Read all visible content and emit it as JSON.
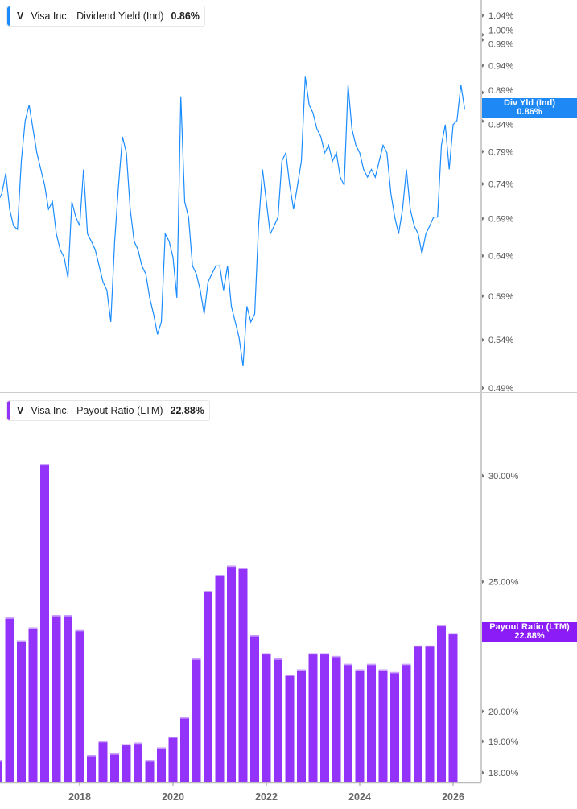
{
  "colors": {
    "yield_line": "#1a8cff",
    "payout_bar": "#9333fa",
    "yield_tag": "#1e88f5",
    "payout_tag": "#8b1cf7"
  },
  "legend_top": {
    "ticker": "V",
    "company": "Visa Inc.",
    "metric": "Dividend Yield (Ind)",
    "value": "0.86%"
  },
  "legend_bottom": {
    "ticker": "V",
    "company": "Visa Inc.",
    "metric": "Payout Ratio (LTM)",
    "value": "22.88%"
  },
  "tag_top": {
    "label": "Div Yld (Ind)",
    "value": "0.86%"
  },
  "tag_bottom": {
    "label": "Payout Ratio (LTM)",
    "value": "22.88%"
  },
  "chart_data": [
    {
      "type": "line",
      "series_name": "Dividend Yield (Ind)",
      "y_scale": "log",
      "ylim": [
        0.486,
        1.073
      ],
      "y_ticks": [
        "1.04%",
        "1.00%",
        "0.99%",
        "0.94%",
        "0.89%",
        "0.84%",
        "0.79%",
        "0.74%",
        "0.69%",
        "0.64%",
        "0.59%",
        "0.54%",
        "0.49%"
      ],
      "y_tick_values": [
        1.04,
        1.0,
        0.99,
        0.94,
        0.89,
        0.84,
        0.79,
        0.74,
        0.69,
        0.64,
        0.59,
        0.54,
        0.49
      ],
      "axis_side": "right",
      "grid": false,
      "x": [
        "2016-04",
        "2016-05",
        "2016-06",
        "2016-07",
        "2016-08",
        "2016-09",
        "2016-10",
        "2016-11",
        "2016-12",
        "2017-01",
        "2017-02",
        "2017-03",
        "2017-04",
        "2017-05",
        "2017-06",
        "2017-07",
        "2017-08",
        "2017-09",
        "2017-10",
        "2017-11",
        "2017-12",
        "2018-01",
        "2018-02",
        "2018-03",
        "2018-04",
        "2018-05",
        "2018-06",
        "2018-07",
        "2018-08",
        "2018-09",
        "2018-10",
        "2018-11",
        "2018-12",
        "2019-01",
        "2019-02",
        "2019-03",
        "2019-04",
        "2019-05",
        "2019-06",
        "2019-07",
        "2019-08",
        "2019-09",
        "2019-10",
        "2019-11",
        "2019-12",
        "2020-01",
        "2020-02",
        "2020-03",
        "2020-04",
        "2020-05",
        "2020-06",
        "2020-07",
        "2020-08",
        "2020-09",
        "2020-10",
        "2020-11",
        "2020-12",
        "2021-01",
        "2021-02",
        "2021-03",
        "2021-04",
        "2021-05",
        "2021-06",
        "2021-07",
        "2021-08",
        "2021-09",
        "2021-10",
        "2021-11",
        "2021-12",
        "2022-01",
        "2022-02",
        "2022-03",
        "2022-04",
        "2022-05",
        "2022-06",
        "2022-07",
        "2022-08",
        "2022-09",
        "2022-10",
        "2022-11",
        "2022-12",
        "2023-01",
        "2023-02",
        "2023-03",
        "2023-04",
        "2023-05",
        "2023-06",
        "2023-07",
        "2023-08",
        "2023-09",
        "2023-10",
        "2023-11",
        "2023-12",
        "2024-01",
        "2024-02",
        "2024-03",
        "2024-04",
        "2024-05",
        "2024-06",
        "2024-07",
        "2024-08",
        "2024-09",
        "2024-10",
        "2024-11",
        "2024-12",
        "2025-01",
        "2025-02",
        "2025-03",
        "2025-04",
        "2025-05",
        "2025-06",
        "2025-07",
        "2025-08",
        "2025-09",
        "2025-10",
        "2025-11",
        "2025-12",
        "2026-01",
        "2026-02",
        "2026-03",
        "2026-04"
      ],
      "values": [
        0.714,
        0.726,
        0.756,
        0.703,
        0.68,
        0.675,
        0.775,
        0.841,
        0.868,
        0.827,
        0.788,
        0.762,
        0.738,
        0.703,
        0.714,
        0.669,
        0.648,
        0.638,
        0.612,
        0.714,
        0.692,
        0.68,
        0.762,
        0.669,
        0.659,
        0.648,
        0.627,
        0.607,
        0.597,
        0.56,
        0.659,
        0.738,
        0.814,
        0.788,
        0.703,
        0.659,
        0.648,
        0.627,
        0.617,
        0.588,
        0.569,
        0.546,
        0.56,
        0.669,
        0.659,
        0.638,
        0.588,
        0.883,
        0.714,
        0.692,
        0.627,
        0.617,
        0.597,
        0.569,
        0.607,
        0.617,
        0.627,
        0.627,
        0.597,
        0.627,
        0.578,
        0.56,
        0.542,
        0.512,
        0.578,
        0.56,
        0.569,
        0.68,
        0.762,
        0.714,
        0.669,
        0.68,
        0.692,
        0.775,
        0.788,
        0.738,
        0.703,
        0.738,
        0.775,
        0.919,
        0.868,
        0.854,
        0.827,
        0.814,
        0.788,
        0.8,
        0.775,
        0.788,
        0.75,
        0.738,
        0.904,
        0.827,
        0.8,
        0.788,
        0.762,
        0.75,
        0.762,
        0.75,
        0.775,
        0.8,
        0.788,
        0.726,
        0.692,
        0.669,
        0.703,
        0.762,
        0.703,
        0.68,
        0.669,
        0.643,
        0.669,
        0.68,
        0.692,
        0.692,
        0.8,
        0.834,
        0.762,
        0.834,
        0.841,
        0.904,
        0.86
      ]
    },
    {
      "type": "bar",
      "series_name": "Payout Ratio (LTM)",
      "y_scale": "log",
      "ylim": [
        17.7,
        34.5
      ],
      "y_ticks": [
        "30.00%",
        "25.00%",
        "20.00%",
        "19.00%",
        "18.00%"
      ],
      "y_tick_values": [
        30,
        25,
        20,
        19,
        18
      ],
      "axis_side": "right",
      "grid": false,
      "x_ticks": [
        "2018",
        "2020",
        "2022",
        "2024",
        "2026"
      ],
      "x": [
        "2016-03",
        "2016-06",
        "2016-09",
        "2016-12",
        "2017-03",
        "2017-06",
        "2017-09",
        "2017-12",
        "2018-03",
        "2018-06",
        "2018-09",
        "2018-12",
        "2019-03",
        "2019-06",
        "2019-09",
        "2019-12",
        "2020-03",
        "2020-06",
        "2020-09",
        "2020-12",
        "2021-03",
        "2021-06",
        "2021-09",
        "2021-12",
        "2022-03",
        "2022-06",
        "2022-09",
        "2022-12",
        "2023-03",
        "2023-06",
        "2023-09",
        "2023-12",
        "2024-03",
        "2024-06",
        "2024-09",
        "2024-12",
        "2025-03",
        "2025-06",
        "2025-09",
        "2025-12"
      ],
      "values": [
        18.4,
        23.5,
        22.6,
        23.1,
        30.6,
        23.6,
        23.6,
        23.0,
        18.55,
        19.0,
        18.6,
        18.9,
        18.95,
        18.4,
        18.8,
        19.15,
        19.8,
        21.9,
        24.6,
        25.3,
        25.7,
        25.6,
        22.8,
        22.1,
        21.9,
        21.3,
        21.5,
        22.1,
        22.1,
        22.0,
        21.7,
        21.5,
        21.7,
        21.5,
        21.4,
        21.7,
        22.4,
        22.4,
        23.2,
        22.88
      ]
    }
  ]
}
